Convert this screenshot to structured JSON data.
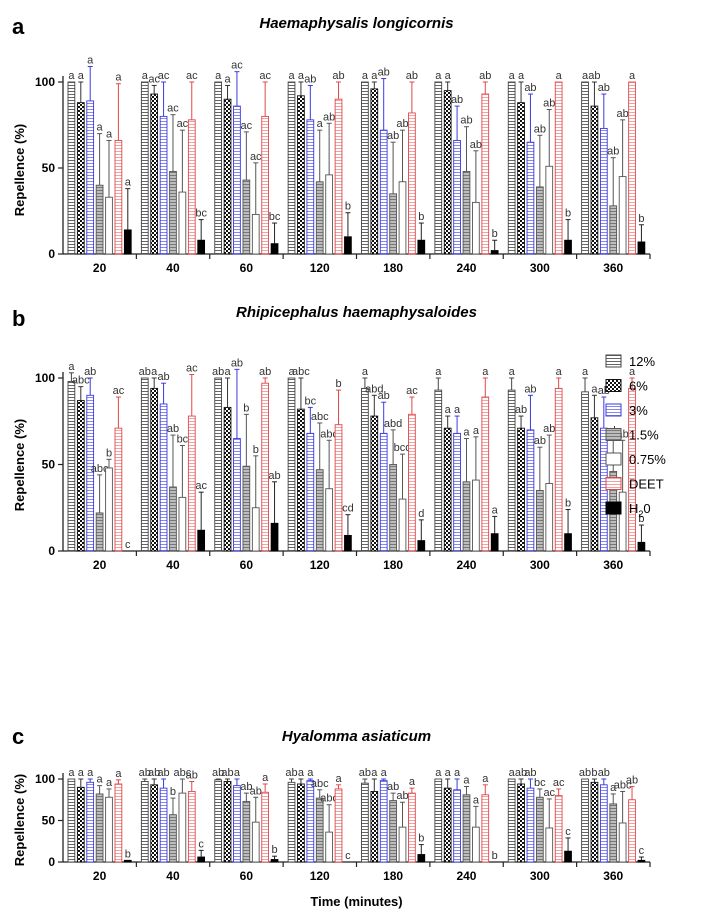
{
  "chart_data": {
    "type": "bar",
    "time_labels": [
      "20",
      "40",
      "60",
      "120",
      "180",
      "240",
      "300",
      "360"
    ],
    "xlabel": "Time (minutes)",
    "ylabel": "Repellence (%)",
    "ylim": [
      0,
      100
    ],
    "yticks": [
      "0",
      "50",
      "100"
    ],
    "legend": {
      "position": "right of panel b",
      "entries": [
        {
          "id": "c12",
          "label": "12%",
          "pattern": "horizontal-lines",
          "color": "#555555"
        },
        {
          "id": "c6",
          "label": "6%",
          "pattern": "checker",
          "color": "#111111"
        },
        {
          "id": "c3",
          "label": "3%",
          "pattern": "horizontal-lines",
          "color": "#3a3ae0"
        },
        {
          "id": "c15",
          "label": "1.5%",
          "pattern": "dense-gray",
          "color": "#666666"
        },
        {
          "id": "c075",
          "label": "0.75%",
          "pattern": "open",
          "color": "#555555"
        },
        {
          "id": "deet",
          "label": "DEET",
          "pattern": "horizontal-lines",
          "color": "#e04848"
        },
        {
          "id": "h2o",
          "label": "H",
          "sub": "2",
          "tail": "0",
          "pattern": "solid",
          "color": "#000000"
        }
      ]
    },
    "panels": [
      {
        "label": "a",
        "title": "Haemaphysalis longicornis",
        "show_xlabel": false,
        "groups": [
          {
            "values": [
              100,
              88,
              89,
              40,
              33,
              66,
              14
            ],
            "errors": [
              0,
              12,
              20,
              30,
              33,
              33,
              24
            ],
            "letters": [
              "a",
              "a",
              "a",
              "a",
              "a",
              "a",
              "a"
            ]
          },
          {
            "values": [
              100,
              93,
              80,
              48,
              36,
              78,
              8
            ],
            "errors": [
              0,
              5,
              20,
              33,
              36,
              22,
              12
            ],
            "letters": [
              "a",
              "ac",
              "ac",
              "ac",
              "ac",
              "ac",
              "bc"
            ]
          },
          {
            "values": [
              100,
              90,
              86,
              43,
              23,
              80,
              6
            ],
            "errors": [
              0,
              8,
              20,
              28,
              30,
              20,
              12
            ],
            "letters": [
              "a",
              "a",
              "ac",
              "ac",
              "ac",
              "ac",
              "bc"
            ]
          },
          {
            "values": [
              100,
              92,
              78,
              42,
              46,
              90,
              10
            ],
            "errors": [
              0,
              8,
              20,
              30,
              30,
              10,
              14
            ],
            "letters": [
              "a",
              "a",
              "ab",
              "a",
              "ab",
              "ab",
              "b"
            ]
          },
          {
            "values": [
              100,
              96,
              72,
              35,
              42,
              82,
              8
            ],
            "errors": [
              0,
              4,
              30,
              30,
              30,
              18,
              10
            ],
            "letters": [
              "a",
              "a",
              "ab",
              "ab",
              "ab",
              "ab",
              "b"
            ]
          },
          {
            "values": [
              100,
              95,
              66,
              48,
              30,
              93,
              2
            ],
            "errors": [
              0,
              5,
              20,
              26,
              30,
              7,
              6
            ],
            "letters": [
              "a",
              "a",
              "ab",
              "ab",
              "ab",
              "ab",
              "b"
            ]
          },
          {
            "values": [
              100,
              88,
              65,
              39,
              51,
              100,
              8
            ],
            "errors": [
              0,
              12,
              28,
              30,
              33,
              0,
              12
            ],
            "letters": [
              "a",
              "a",
              "ab",
              "ab",
              "ab",
              "a",
              "b"
            ]
          },
          {
            "values": [
              100,
              86,
              73,
              28,
              45,
              100,
              7
            ],
            "errors": [
              0,
              14,
              20,
              28,
              33,
              0,
              10
            ],
            "letters": [
              "a",
              "ab",
              "ab",
              "ab",
              "ab",
              "a",
              "b"
            ]
          }
        ]
      },
      {
        "label": "b",
        "title": "Rhipicephalus haemaphysaloides",
        "show_xlabel": false,
        "groups": [
          {
            "values": [
              98,
              87,
              90,
              22,
              48,
              71,
              0
            ],
            "errors": [
              5,
              8,
              10,
              22,
              5,
              18,
              0
            ],
            "letters": [
              "a",
              "abc",
              "ab",
              "abc",
              "b",
              "ac",
              "c"
            ]
          },
          {
            "values": [
              100,
              94,
              85,
              37,
              31,
              78,
              12
            ],
            "errors": [
              0,
              6,
              12,
              30,
              30,
              24,
              22
            ],
            "letters": [
              "ab",
              "a",
              "ab",
              "ab",
              "bc",
              "ac",
              "ac"
            ]
          },
          {
            "values": [
              100,
              83,
              65,
              49,
              25,
              97,
              16
            ],
            "errors": [
              0,
              17,
              40,
              30,
              30,
              3,
              24
            ],
            "letters": [
              "ab",
              "a",
              "ab",
              "b",
              "b",
              "ab",
              "ab"
            ]
          },
          {
            "values": [
              100,
              82,
              68,
              47,
              36,
              73,
              9
            ],
            "errors": [
              0,
              18,
              15,
              27,
              28,
              20,
              12
            ],
            "letters": [
              "a",
              "abc",
              "bc",
              "abc",
              "abc",
              "b",
              "cd"
            ]
          },
          {
            "values": [
              94,
              78,
              68,
              50,
              30,
              79,
              6
            ],
            "errors": [
              6,
              12,
              18,
              20,
              26,
              10,
              12
            ],
            "letters": [
              "a",
              "abd",
              "ab",
              "abd",
              "bcd",
              "ac",
              "d"
            ]
          },
          {
            "values": [
              93,
              71,
              68,
              40,
              41,
              89,
              10
            ],
            "errors": [
              7,
              7,
              10,
              25,
              25,
              11,
              10
            ],
            "letters": [
              "a",
              "a",
              "a",
              "a",
              "a",
              "a",
              "a"
            ]
          },
          {
            "values": [
              93,
              71,
              70,
              35,
              39,
              94,
              10
            ],
            "errors": [
              7,
              7,
              20,
              25,
              28,
              6,
              14
            ],
            "letters": [
              "a",
              "ab",
              "ab",
              "ab",
              "ab",
              "a",
              "b"
            ]
          },
          {
            "values": [
              92,
              77,
              71,
              46,
              34,
              94,
              5
            ],
            "errors": [
              8,
              13,
              18,
              20,
              30,
              6,
              10
            ],
            "letters": [
              "a",
              "a",
              "ab",
              "ab",
              "ab",
              "a",
              "b"
            ]
          }
        ]
      },
      {
        "label": "c",
        "title": "Hyalomma asiaticum",
        "show_xlabel": true,
        "groups": [
          {
            "values": [
              100,
              90,
              96,
              82,
              78,
              94,
              2
            ],
            "errors": [
              0,
              10,
              4,
              10,
              10,
              5,
              0
            ],
            "letters": [
              "a",
              "a",
              "a",
              "a",
              "a",
              "a",
              "b"
            ]
          },
          {
            "values": [
              97,
              93,
              89,
              57,
              83,
              85,
              6
            ],
            "errors": [
              3,
              7,
              11,
              20,
              17,
              12,
              8
            ],
            "letters": [
              "ab",
              "ab",
              "ab",
              "b",
              "abc",
              "ab",
              "c"
            ]
          },
          {
            "values": [
              99,
              97,
              92,
              73,
              48,
              84,
              3
            ],
            "errors": [
              1,
              3,
              8,
              10,
              30,
              10,
              4
            ],
            "letters": [
              "ab",
              "ab",
              "a",
              "ab",
              "ab",
              "a",
              "b"
            ]
          },
          {
            "values": [
              96,
              94,
              98,
              77,
              36,
              88,
              0
            ],
            "errors": [
              4,
              6,
              2,
              10,
              33,
              5,
              0
            ],
            "letters": [
              "ab",
              "a",
              "a",
              "abc",
              "abc",
              "a",
              "c"
            ]
          },
          {
            "values": [
              95,
              85,
              98,
              74,
              42,
              83,
              9
            ],
            "errors": [
              5,
              15,
              2,
              9,
              30,
              6,
              12
            ],
            "letters": [
              "ab",
              "a",
              "a",
              "ab",
              "ab",
              "a",
              "b"
            ]
          },
          {
            "values": [
              100,
              89,
              87,
              81,
              42,
              81,
              0
            ],
            "errors": [
              0,
              11,
              13,
              10,
              25,
              12,
              0
            ],
            "letters": [
              "a",
              "a",
              "a",
              "a",
              "a",
              "a",
              "b"
            ]
          },
          {
            "values": [
              100,
              94,
              89,
              78,
              41,
              80,
              13
            ],
            "errors": [
              0,
              6,
              11,
              10,
              35,
              8,
              16
            ],
            "letters": [
              "a",
              "ab",
              "ab",
              "bc",
              "ac",
              "ac",
              "c"
            ]
          },
          {
            "values": [
              100,
              96,
              93,
              70,
              47,
              75,
              2
            ],
            "errors": [
              0,
              4,
              7,
              12,
              38,
              16,
              4
            ],
            "letters": [
              "ab",
              "b",
              "ab",
              "a",
              "abc",
              "ab",
              "c"
            ]
          }
        ]
      }
    ]
  }
}
